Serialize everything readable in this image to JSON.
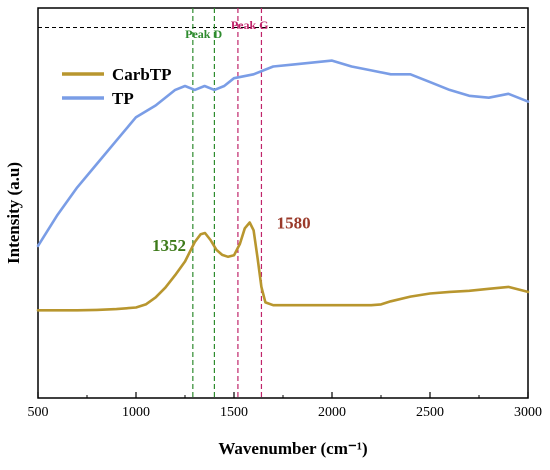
{
  "chart_data": {
    "type": "line",
    "xlabel": "Wavenumber (cm⁻¹)",
    "ylabel": "Intensity (a.u)",
    "xlim": [
      500,
      3000
    ],
    "xticks": [
      "500",
      "1000",
      "1500",
      "2000",
      "2500",
      "3000"
    ],
    "ylim": [
      0,
      1
    ],
    "grid": false,
    "legend_position": "top-left",
    "series": [
      {
        "name": "CarbTP",
        "color": "#b8962e",
        "x": [
          500,
          600,
          700,
          800,
          900,
          1000,
          1050,
          1100,
          1150,
          1200,
          1250,
          1300,
          1330,
          1352,
          1380,
          1410,
          1440,
          1470,
          1500,
          1530,
          1555,
          1580,
          1600,
          1620,
          1640,
          1660,
          1700,
          1800,
          1900,
          2000,
          2100,
          2200,
          2250,
          2300,
          2400,
          2500,
          2600,
          2700,
          2800,
          2900,
          3000
        ],
        "y": [
          0.225,
          0.225,
          0.225,
          0.226,
          0.228,
          0.232,
          0.24,
          0.258,
          0.283,
          0.315,
          0.35,
          0.4,
          0.42,
          0.423,
          0.405,
          0.38,
          0.367,
          0.362,
          0.366,
          0.395,
          0.435,
          0.45,
          0.43,
          0.36,
          0.285,
          0.245,
          0.238,
          0.238,
          0.238,
          0.238,
          0.238,
          0.238,
          0.24,
          0.248,
          0.26,
          0.268,
          0.272,
          0.275,
          0.28,
          0.285,
          0.272
        ]
      },
      {
        "name": "TP",
        "color": "#7a9de6",
        "x": [
          500,
          600,
          700,
          800,
          900,
          1000,
          1100,
          1200,
          1250,
          1300,
          1350,
          1400,
          1450,
          1500,
          1600,
          1700,
          1800,
          1900,
          2000,
          2100,
          2200,
          2300,
          2400,
          2500,
          2600,
          2700,
          2800,
          2900,
          3000
        ],
        "y": [
          0.39,
          0.47,
          0.54,
          0.6,
          0.66,
          0.72,
          0.75,
          0.79,
          0.8,
          0.79,
          0.8,
          0.79,
          0.8,
          0.82,
          0.83,
          0.85,
          0.855,
          0.86,
          0.865,
          0.85,
          0.84,
          0.83,
          0.83,
          0.81,
          0.79,
          0.775,
          0.77,
          0.78,
          0.76
        ]
      }
    ],
    "peak_bands": [
      {
        "label": "Peak D",
        "color": "#2e8b2e",
        "range": [
          1290,
          1400
        ]
      },
      {
        "label": "Peak G",
        "color": "#c0246a",
        "range": [
          1520,
          1640
        ]
      }
    ],
    "reference_line_y": 0.95,
    "annotations": [
      {
        "text": "1352",
        "color": "#3d7a1a",
        "x": 1352
      },
      {
        "text": "1580",
        "color": "#9a3a2a",
        "x": 1580
      }
    ]
  }
}
